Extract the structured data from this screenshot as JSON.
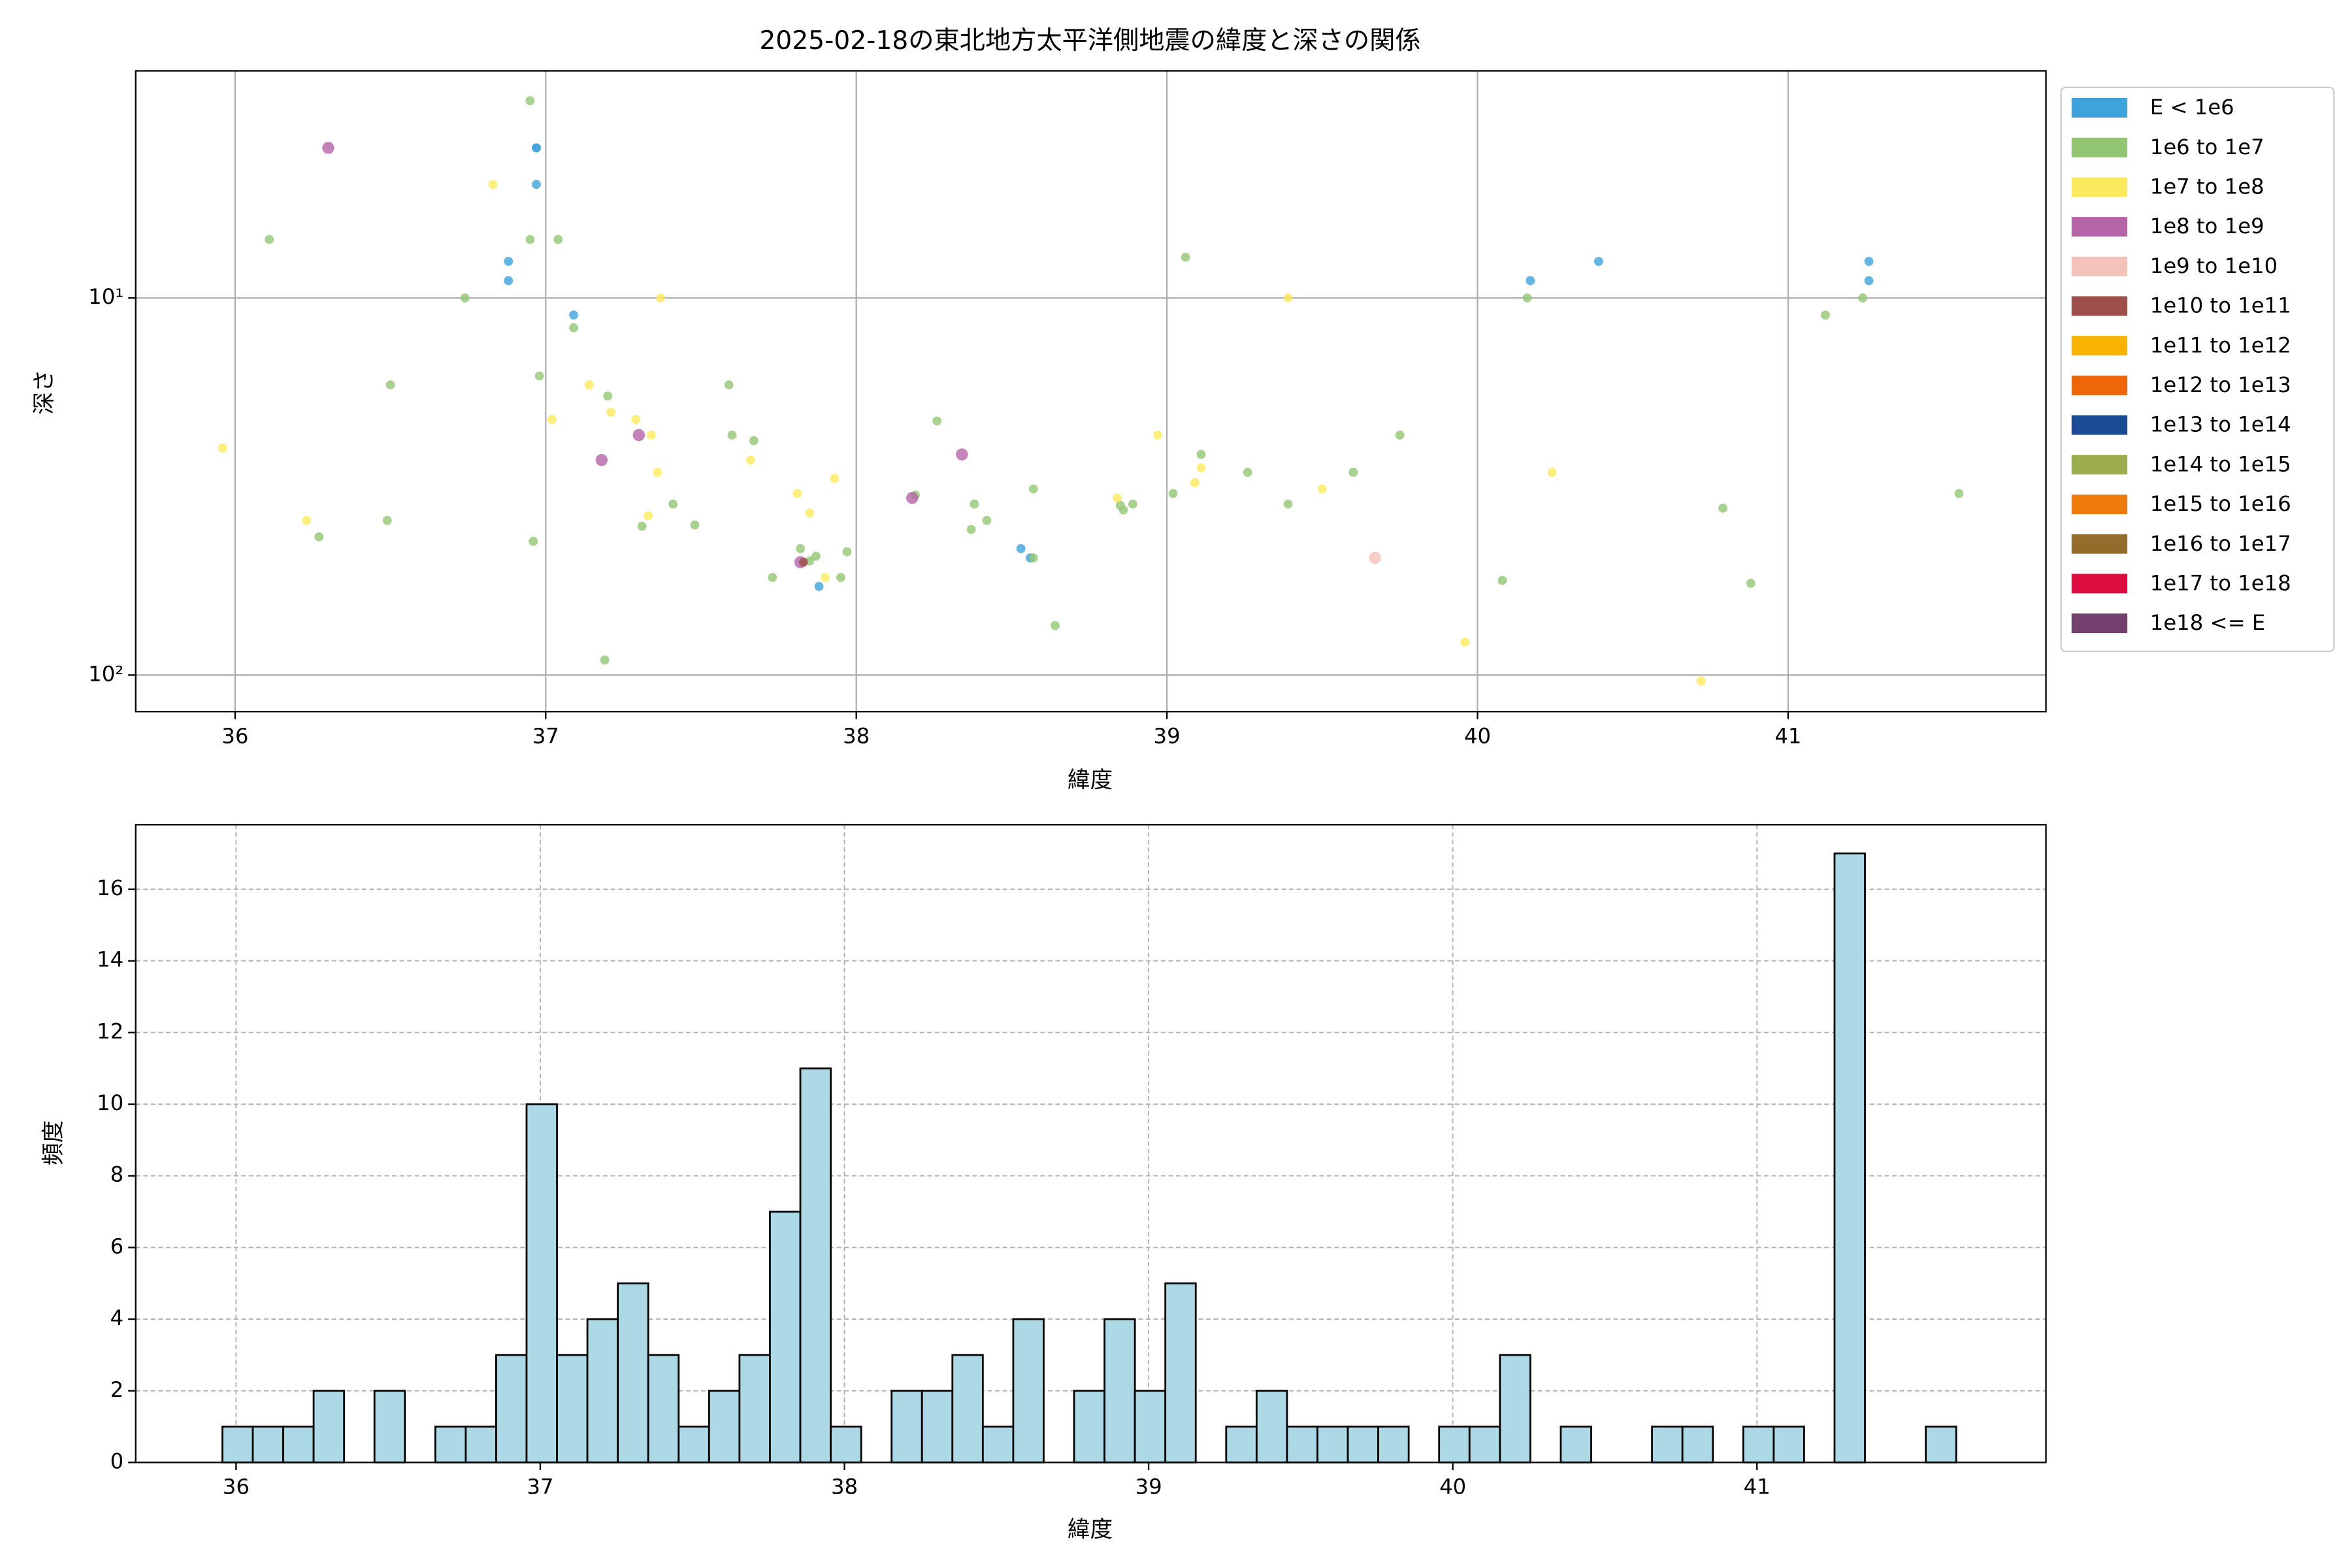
{
  "chart_data": [
    {
      "type": "scatter",
      "title": "2025-02-18の東北地方太平洋側地震の緯度と深さの関係",
      "xlabel": "緯度",
      "ylabel": "深さ",
      "xlim": [
        35.68,
        41.83
      ],
      "ylim": [
        2.5,
        125
      ],
      "log_y": true,
      "y_inverted": true,
      "grid": true,
      "legend": "outside right",
      "xticks": [
        36,
        37,
        38,
        39,
        40,
        41
      ],
      "yticks": [
        {
          "value": 10,
          "label": "10¹"
        },
        {
          "value": 100,
          "label": "10²"
        }
      ],
      "series": [
        {
          "name": "E < 1e6",
          "color": "#3ea3db",
          "x": [
            36.97,
            36.97,
            36.97,
            36.88,
            36.88,
            37.09,
            37.88,
            38.53,
            38.56,
            40.17,
            40.39,
            41.26,
            41.26
          ],
          "values": [
            4.0,
            4.0,
            5.0,
            8.0,
            9.0,
            11.1,
            58.2,
            46.2,
            48.9,
            9.0,
            8.0,
            8.0,
            9.0
          ]
        },
        {
          "name": "1e6 to 1e7",
          "color": "#93c673",
          "x": [
            36.95,
            36.11,
            36.95,
            37.04,
            36.74,
            37.09,
            36.98,
            36.5,
            36.49,
            36.27,
            36.96,
            37.2,
            37.59,
            37.6,
            37.67,
            37.41,
            37.31,
            37.48,
            37.19,
            37.73,
            37.82,
            37.87,
            37.85,
            37.95,
            37.97,
            38.19,
            38.26,
            38.38,
            38.37,
            38.42,
            38.57,
            38.57,
            38.64,
            38.86,
            38.85,
            38.89,
            39.02,
            39.06,
            39.11,
            39.26,
            39.39,
            39.6,
            39.75,
            40.08,
            40.16,
            40.79,
            40.88,
            41.12,
            41.24,
            41.55
          ],
          "values": [
            3.0,
            7.0,
            7.0,
            7.0,
            10,
            12.0,
            16.1,
            17.0,
            38.9,
            43.0,
            44.2,
            18.2,
            17.0,
            23.1,
            23.9,
            35.2,
            40.3,
            40.0,
            91.2,
            55.1,
            46.2,
            48.4,
            49.8,
            55.1,
            47.1,
            33.3,
            21.2,
            35.2,
            41.1,
            38.9,
            32.1,
            48.9,
            73.9,
            36.5,
            35.5,
            35.2,
            33.0,
            7.8,
            26.0,
            29.0,
            35.2,
            29.0,
            23.1,
            56.1,
            10,
            36.1,
            57.1,
            11.1,
            10,
            33.0
          ]
        },
        {
          "name": "1e7 to 1e8",
          "color": "#fcea5e",
          "x": [
            36.83,
            35.96,
            36.23,
            37.02,
            37.14,
            37.21,
            37.29,
            37.34,
            37.36,
            37.33,
            37.37,
            37.66,
            37.81,
            37.85,
            37.93,
            37.9,
            38.97,
            38.84,
            39.11,
            39.09,
            39.5,
            39.39,
            39.96,
            40.24,
            40.72
          ],
          "values": [
            5.0,
            25.0,
            38.9,
            21.0,
            17.0,
            20.1,
            21.0,
            23.1,
            29.0,
            37.8,
            10,
            26.9,
            33.0,
            37.2,
            30.1,
            55.1,
            23.1,
            33.9,
            28.2,
            30.9,
            32.1,
            10,
            81.7,
            29.0,
            103.7
          ]
        },
        {
          "name": "1e8 to 1e9",
          "color": "#b564a8",
          "x": [
            36.3,
            37.18,
            37.3,
            38.34,
            38.18,
            37.82
          ],
          "values": [
            4.0,
            26.9,
            23.1,
            26.0,
            33.9,
            50.2
          ]
        },
        {
          "name": "1e9 to 1e10",
          "color": "#f4c1bb",
          "x": [
            39.67
          ],
          "values": [
            48.9
          ]
        },
        {
          "name": "1e10 to 1e11",
          "color": "#9e4f4c",
          "x": [
            37.83
          ],
          "values": [
            50.2
          ]
        },
        {
          "name": "1e11 to 1e12",
          "color": "#f7b300",
          "x": [],
          "values": []
        },
        {
          "name": "1e12 to 1e13",
          "color": "#ee6608",
          "x": [],
          "values": []
        },
        {
          "name": "1e13 to 1e14",
          "color": "#1b4b94",
          "x": [],
          "values": []
        },
        {
          "name": "1e14 to 1e15",
          "color": "#9bad4d",
          "x": [],
          "values": []
        },
        {
          "name": "1e15 to 1e16",
          "color": "#ee7a0c",
          "x": [],
          "values": []
        },
        {
          "name": "1e16 to 1e17",
          "color": "#946c2c",
          "x": [],
          "values": []
        },
        {
          "name": "1e17 to 1e18",
          "color": "#dc0b40",
          "x": [],
          "values": []
        },
        {
          "name": "1e18 <= E",
          "color": "#74406e",
          "x": [],
          "values": []
        }
      ]
    },
    {
      "type": "histogram",
      "xlabel": "緯度",
      "ylabel": "頻度",
      "color": "#add8e6",
      "edgecolor": "#000000",
      "grid": "dashed",
      "xlim": [
        35.67,
        41.95
      ],
      "ylim": [
        0,
        17.8
      ],
      "xticks": [
        36,
        37,
        38,
        39,
        40,
        41
      ],
      "yticks": [
        0,
        2,
        4,
        6,
        8,
        10,
        12,
        14,
        16
      ],
      "bins": [
        35.955,
        36.055,
        36.155,
        36.255,
        36.355,
        36.455,
        36.555,
        36.655,
        36.755,
        36.855,
        36.955,
        37.055,
        37.155,
        37.255,
        37.355,
        37.455,
        37.555,
        37.655,
        37.755,
        37.855,
        37.955,
        38.055,
        38.155,
        38.255,
        38.355,
        38.455,
        38.555,
        38.655,
        38.755,
        38.855,
        38.955,
        39.055,
        39.155,
        39.255,
        39.355,
        39.455,
        39.555,
        39.655,
        39.755,
        39.855,
        39.955,
        40.055,
        40.155,
        40.255,
        40.355,
        40.455,
        40.555,
        40.655,
        40.755,
        40.855,
        40.955,
        41.055,
        41.155,
        41.255,
        41.355,
        41.455,
        41.555,
        41.655
      ],
      "values": [
        1,
        1,
        1,
        2,
        0,
        2,
        0,
        1,
        1,
        3,
        10,
        3,
        4,
        5,
        3,
        1,
        2,
        3,
        7,
        11,
        1,
        0,
        2,
        2,
        3,
        1,
        4,
        0,
        2,
        4,
        2,
        5,
        0,
        1,
        2,
        1,
        1,
        1,
        1,
        0,
        1,
        1,
        3,
        0,
        1,
        0,
        0,
        1,
        1,
        0,
        1,
        1,
        0,
        17,
        0,
        0,
        1
      ]
    }
  ]
}
